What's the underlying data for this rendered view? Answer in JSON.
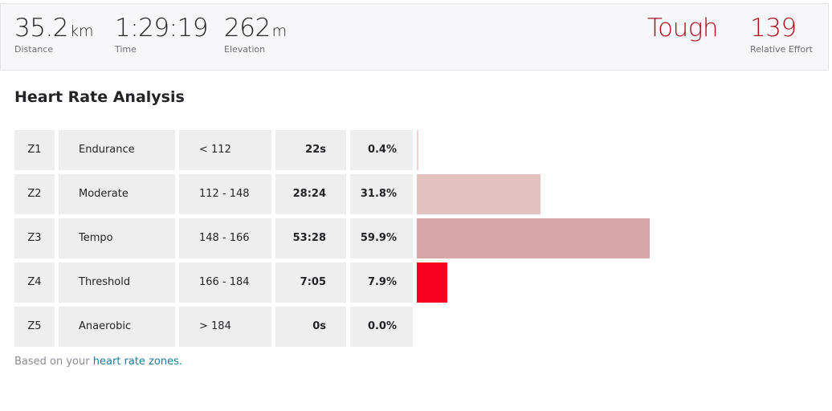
{
  "stats": [
    {
      "value": "35.2",
      "unit": "km",
      "label": "Distance"
    },
    {
      "value": "1:29:19",
      "label": "Time"
    },
    {
      "value": "262",
      "unit": "m",
      "label": "Elevation"
    }
  ],
  "effort": {
    "level": "Tough",
    "value": "139",
    "label": "Relative Effort"
  },
  "title": "Heart Rate Analysis",
  "zones": [
    {
      "zone": "Z1",
      "name": "Endurance",
      "range": "< 112",
      "time": "22s",
      "percent": 0.4,
      "percent_label": "0.4%",
      "color": "#ecd0d2"
    },
    {
      "zone": "Z2",
      "name": "Moderate",
      "range": "112 - 148",
      "time": "28:24",
      "percent": 31.8,
      "percent_label": "31.8%",
      "color": "#e3c1c1"
    },
    {
      "zone": "Z3",
      "name": "Tempo",
      "range": "148 - 166",
      "time": "53:28",
      "percent": 59.9,
      "percent_label": "59.9%",
      "color": "#d7a6a6"
    },
    {
      "zone": "Z4",
      "name": "Threshold",
      "range": "166 - 184",
      "time": "7:05",
      "percent": 7.9,
      "percent_label": "7.9%",
      "color": "#f70020"
    },
    {
      "zone": "Z5",
      "name": "Anaerobic",
      "range": "> 184",
      "time": "0s",
      "percent": 0.0,
      "percent_label": "0.0%",
      "color": "#f70020"
    }
  ],
  "footer": {
    "text": "Based on your",
    "link": "heart rate zones."
  }
}
